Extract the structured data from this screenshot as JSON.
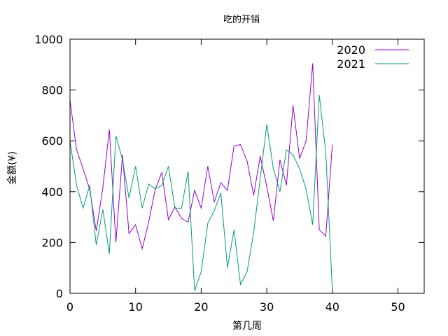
{
  "chart_data": {
    "type": "line",
    "title": "吃的开销",
    "xlabel": "第几周",
    "ylabel": "金额(¥)",
    "xlim": [
      0,
      54
    ],
    "ylim": [
      0,
      1000
    ],
    "x_ticks": [
      0,
      10,
      20,
      30,
      40,
      50
    ],
    "y_ticks": [
      0,
      200,
      400,
      600,
      800,
      1000
    ],
    "grid": false,
    "legend_position": "top-right",
    "series": [
      {
        "name": "2020",
        "color": "#9400d3",
        "x": [
          0,
          1,
          2,
          3,
          4,
          5,
          6,
          7,
          8,
          9,
          10,
          11,
          12,
          13,
          14,
          15,
          16,
          17,
          18,
          19,
          20,
          21,
          22,
          23,
          24,
          25,
          26,
          27,
          28,
          29,
          30,
          31,
          32,
          33,
          34,
          35,
          36,
          37,
          38,
          39,
          40
        ],
        "values": [
          760,
          565,
          490,
          410,
          245,
          415,
          645,
          200,
          545,
          235,
          270,
          175,
          280,
          410,
          475,
          290,
          340,
          295,
          280,
          405,
          335,
          500,
          360,
          435,
          405,
          580,
          585,
          520,
          385,
          540,
          420,
          285,
          525,
          425,
          740,
          530,
          600,
          905,
          250,
          225,
          585
        ]
      },
      {
        "name": "2021",
        "color": "#009e73",
        "x": [
          0,
          1,
          2,
          3,
          4,
          5,
          6,
          7,
          8,
          9,
          10,
          11,
          12,
          13,
          14,
          15,
          16,
          17,
          18,
          19,
          20,
          21,
          22,
          23,
          24,
          25,
          26,
          27,
          28,
          29,
          30,
          31,
          32,
          33,
          34,
          35,
          36,
          37,
          38,
          39,
          40
        ],
        "values": [
          600,
          425,
          335,
          425,
          190,
          330,
          155,
          620,
          525,
          375,
          500,
          335,
          430,
          410,
          425,
          500,
          335,
          335,
          480,
          10,
          85,
          275,
          325,
          395,
          100,
          250,
          35,
          85,
          240,
          450,
          665,
          490,
          400,
          565,
          545,
          490,
          410,
          270,
          780,
          555,
          10
        ]
      }
    ]
  }
}
